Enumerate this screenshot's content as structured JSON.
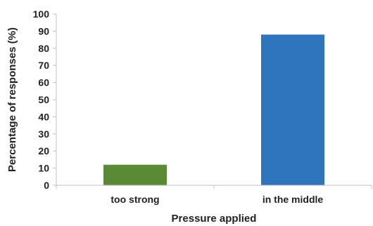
{
  "chart_data": {
    "type": "bar",
    "categories": [
      "too strong",
      "in the middle"
    ],
    "values": [
      12,
      88
    ],
    "colors": [
      "#5b8a35",
      "#2f75bd"
    ],
    "xlabel": "Pressure applied",
    "ylabel": "Percentage of responses (%)",
    "ylim": [
      0,
      100
    ],
    "yticks": [
      "0",
      "10",
      "20",
      "30",
      "40",
      "50",
      "60",
      "70",
      "80",
      "90",
      "100"
    ],
    "grid": false,
    "legend": "none"
  }
}
